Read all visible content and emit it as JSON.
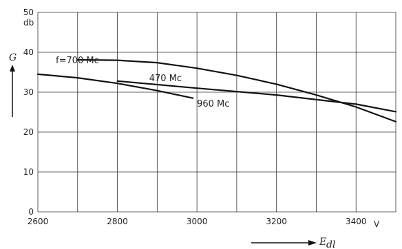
{
  "chart_data": {
    "type": "line",
    "xlabel": "E",
    "xlabel_sub": "dl",
    "xunit": "V",
    "ylabel": "G",
    "yunit": "db",
    "xlim": [
      2600,
      3500
    ],
    "ylim": [
      0,
      50
    ],
    "x_ticks": [
      "2600",
      "2800",
      "3000",
      "3200",
      "3400"
    ],
    "y_ticks": [
      "0",
      "10",
      "20",
      "30",
      "40",
      "50"
    ],
    "grid": true,
    "series": [
      {
        "name": "f=700 Mc",
        "x": [
          2700,
          2800,
          2900,
          3000,
          3100,
          3200,
          3300,
          3400,
          3500
        ],
        "y": [
          38.1,
          38.0,
          37.4,
          36.0,
          34.2,
          32.0,
          29.3,
          26.3,
          22.6
        ]
      },
      {
        "name": "470 Mc",
        "x": [
          2800,
          3000,
          3200,
          3400,
          3500
        ],
        "y": [
          32.8,
          31.0,
          29.3,
          27.0,
          25.1
        ]
      },
      {
        "name": "960 Mc",
        "x": [
          2600,
          2700,
          2800,
          2900,
          2990
        ],
        "y": [
          34.5,
          33.6,
          32.2,
          30.4,
          28.5
        ]
      }
    ]
  }
}
